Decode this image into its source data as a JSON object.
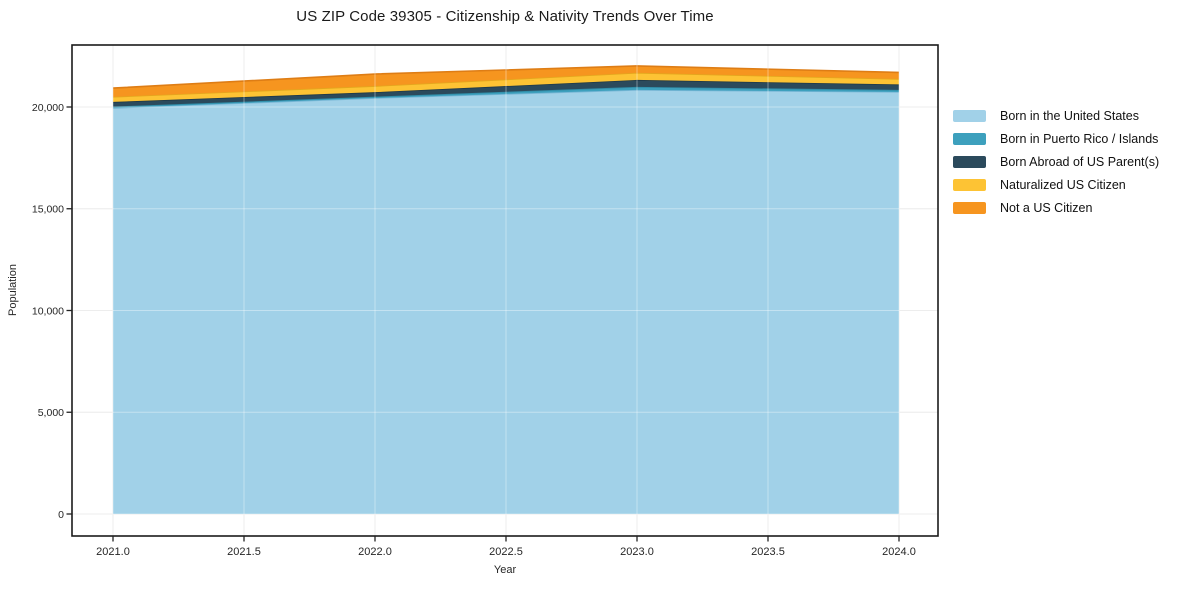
{
  "title": "US ZIP Code 39305 - Citizenship & Nativity Trends Over Time",
  "axes": {
    "xlabel": "Year",
    "ylabel": "Population"
  },
  "chart_data": {
    "type": "area",
    "stacked": true,
    "title": "US ZIP Code 39305 - Citizenship & Nativity Trends Over Time",
    "xlabel": "Year",
    "ylabel": "Population",
    "x": [
      2021,
      2022,
      2023,
      2024
    ],
    "series": [
      {
        "name": "Born in the United States",
        "color": "#A1D1E8",
        "edge_color": "#79B7D6",
        "values": [
          19950,
          20440,
          20840,
          20740
        ]
      },
      {
        "name": "Born in Puerto Rico / Islands",
        "color": "#3DA0BD",
        "edge_color": "#2F8BA6",
        "values": [
          70,
          70,
          150,
          100
        ]
      },
      {
        "name": "Born Abroad of US Parent(s)",
        "color": "#2B4A5C",
        "edge_color": "#203947",
        "values": [
          230,
          220,
          340,
          270
        ]
      },
      {
        "name": "Naturalized US Citizen",
        "color": "#FDC334",
        "edge_color": "#E3A71D",
        "values": [
          250,
          300,
          350,
          270
        ]
      },
      {
        "name": "Not a US Citizen",
        "color": "#F6951F",
        "edge_color": "#DE7D15",
        "values": [
          430,
          590,
          340,
          320
        ]
      }
    ],
    "stacked_totals": [
      20930,
      21620,
      22020,
      21700
    ],
    "x_ticks": [
      2021.0,
      2021.5,
      2022.0,
      2022.5,
      2023.0,
      2023.5,
      2024.0
    ],
    "x_tick_labels": [
      "2021.0",
      "2021.5",
      "2022.0",
      "2022.5",
      "2023.0",
      "2023.5",
      "2024.0"
    ],
    "y_ticks": [
      0,
      5000,
      10000,
      15000,
      20000
    ],
    "y_tick_labels": [
      "0",
      "5,000",
      "10,000",
      "15,000",
      "20,000"
    ],
    "xlim": [
      2020.84,
      2024.16
    ],
    "ylim": [
      -1150,
      23050
    ],
    "grid": true,
    "grid_color": "#e3e3e3",
    "border_color": "#1a1a1a",
    "legend_position": "outside-right"
  }
}
